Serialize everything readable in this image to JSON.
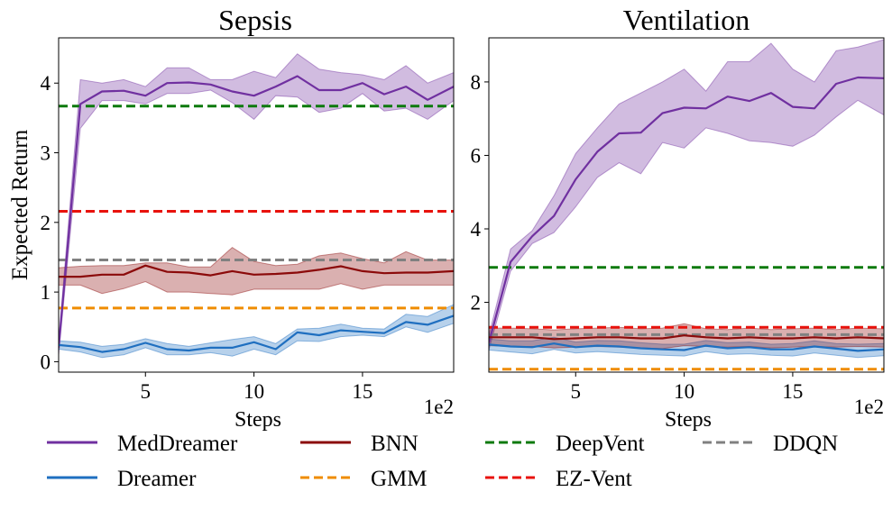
{
  "chart_data": [
    {
      "type": "line",
      "title": "Sepsis",
      "xlabel": "Steps",
      "ylabel": "Expected Return",
      "x_multiplier": "1e2",
      "xlim": [
        1,
        19.2
      ],
      "ylim": [
        -0.15,
        4.65
      ],
      "xticks": [
        5,
        10,
        15
      ],
      "yticks": [
        0,
        1,
        2,
        3,
        4
      ],
      "series": [
        {
          "name": "MedDreamer",
          "color": "#7030a0",
          "x": [
            1,
            2,
            3,
            4,
            5,
            6,
            7,
            8,
            9,
            10,
            11,
            12,
            13,
            14,
            15,
            16,
            17,
            18,
            19.2
          ],
          "y": [
            0.2,
            3.7,
            3.88,
            3.89,
            3.82,
            4.0,
            4.01,
            3.98,
            3.88,
            3.82,
            3.95,
            4.1,
            3.9,
            3.9,
            4.0,
            3.84,
            3.95,
            3.76,
            3.95
          ],
          "upper": [
            0.3,
            4.05,
            4.0,
            4.05,
            3.95,
            4.22,
            4.22,
            4.05,
            4.05,
            4.17,
            4.08,
            4.42,
            4.2,
            4.15,
            4.12,
            4.05,
            4.25,
            4.0,
            4.15
          ],
          "lower": [
            0.1,
            3.35,
            3.75,
            3.75,
            3.7,
            3.85,
            3.85,
            3.9,
            3.72,
            3.48,
            3.82,
            3.8,
            3.58,
            3.64,
            3.85,
            3.6,
            3.64,
            3.48,
            3.75
          ]
        },
        {
          "name": "Dreamer",
          "color": "#1f6fc0",
          "x": [
            1,
            2,
            3,
            4,
            5,
            6,
            7,
            8,
            9,
            10,
            11,
            12,
            13,
            14,
            15,
            16,
            17,
            18,
            19.2
          ],
          "y": [
            0.24,
            0.21,
            0.14,
            0.18,
            0.27,
            0.18,
            0.16,
            0.2,
            0.2,
            0.28,
            0.18,
            0.42,
            0.38,
            0.45,
            0.43,
            0.41,
            0.57,
            0.53,
            0.66
          ],
          "upper": [
            0.3,
            0.28,
            0.22,
            0.25,
            0.33,
            0.26,
            0.22,
            0.27,
            0.32,
            0.36,
            0.26,
            0.47,
            0.48,
            0.54,
            0.48,
            0.47,
            0.68,
            0.65,
            0.82
          ],
          "lower": [
            0.18,
            0.14,
            0.06,
            0.1,
            0.2,
            0.1,
            0.1,
            0.13,
            0.08,
            0.18,
            0.1,
            0.3,
            0.29,
            0.36,
            0.38,
            0.36,
            0.5,
            0.42,
            0.55
          ]
        },
        {
          "name": "BNN",
          "color": "#8b0a0a",
          "x": [
            1,
            2,
            3,
            4,
            5,
            6,
            7,
            8,
            9,
            10,
            11,
            12,
            13,
            14,
            15,
            16,
            17,
            18,
            19.2
          ],
          "y": [
            1.22,
            1.22,
            1.25,
            1.25,
            1.38,
            1.29,
            1.28,
            1.24,
            1.3,
            1.25,
            1.26,
            1.28,
            1.32,
            1.37,
            1.3,
            1.27,
            1.28,
            1.28,
            1.3
          ],
          "upper": [
            1.35,
            1.37,
            1.38,
            1.38,
            1.42,
            1.42,
            1.36,
            1.36,
            1.64,
            1.44,
            1.38,
            1.4,
            1.52,
            1.56,
            1.48,
            1.42,
            1.58,
            1.46,
            1.46
          ],
          "lower": [
            1.1,
            1.1,
            0.98,
            1.05,
            1.15,
            1.0,
            1.0,
            0.98,
            0.96,
            1.04,
            1.04,
            1.04,
            1.04,
            1.12,
            1.04,
            1.1,
            1.1,
            1.1,
            1.1
          ]
        },
        {
          "name": "GMM",
          "color": "#ef8c00",
          "constant": 0.77
        },
        {
          "name": "DeepVent",
          "color": "#0d7a0d",
          "constant": 3.67
        },
        {
          "name": "EZ-Vent",
          "color": "#e8120c",
          "constant": 2.16
        },
        {
          "name": "DDQN",
          "color": "#808080",
          "constant": 1.46
        }
      ]
    },
    {
      "type": "line",
      "title": "Ventilation",
      "xlabel": "Steps",
      "ylabel": "",
      "x_multiplier": "1e2",
      "xlim": [
        1,
        19.2
      ],
      "ylim": [
        0.1,
        9.2
      ],
      "xticks": [
        5,
        10,
        15
      ],
      "yticks": [
        2,
        4,
        6,
        8
      ],
      "series": [
        {
          "name": "MedDreamer",
          "color": "#7030a0",
          "x": [
            1,
            2,
            3,
            4,
            5,
            6,
            7,
            8,
            9,
            10,
            11,
            12,
            13,
            14,
            15,
            16,
            17,
            18,
            19.2
          ],
          "y": [
            0.9,
            3.1,
            3.8,
            4.35,
            5.35,
            6.1,
            6.6,
            6.62,
            7.15,
            7.3,
            7.28,
            7.6,
            7.48,
            7.7,
            7.32,
            7.28,
            7.95,
            8.12,
            8.1
          ],
          "upper": [
            1.1,
            3.45,
            3.95,
            4.9,
            6.05,
            6.75,
            7.4,
            7.7,
            8.0,
            8.35,
            7.75,
            8.55,
            8.55,
            9.05,
            8.35,
            8.0,
            8.85,
            8.95,
            9.15
          ],
          "lower": [
            0.7,
            2.85,
            3.6,
            3.9,
            4.6,
            5.4,
            5.8,
            5.5,
            6.35,
            6.2,
            6.75,
            6.6,
            6.4,
            6.35,
            6.25,
            6.55,
            7.05,
            7.5,
            7.1
          ]
        },
        {
          "name": "Dreamer",
          "color": "#1f6fc0",
          "x": [
            1,
            2,
            3,
            4,
            5,
            6,
            7,
            8,
            9,
            10,
            11,
            12,
            13,
            14,
            15,
            16,
            17,
            18,
            19.2
          ],
          "y": [
            0.85,
            0.8,
            0.78,
            0.88,
            0.78,
            0.82,
            0.8,
            0.75,
            0.72,
            0.7,
            0.82,
            0.75,
            0.78,
            0.72,
            0.72,
            0.8,
            0.74,
            0.68,
            0.72
          ],
          "upper": [
            1.0,
            0.95,
            0.95,
            1.05,
            0.92,
            0.96,
            0.95,
            0.9,
            0.86,
            0.86,
            0.96,
            0.9,
            0.92,
            0.86,
            0.88,
            0.95,
            0.88,
            0.86,
            0.88
          ],
          "lower": [
            0.7,
            0.65,
            0.6,
            0.72,
            0.62,
            0.66,
            0.62,
            0.58,
            0.56,
            0.54,
            0.66,
            0.58,
            0.6,
            0.56,
            0.54,
            0.62,
            0.56,
            0.5,
            0.55
          ]
        },
        {
          "name": "BNN",
          "color": "#8b0a0a",
          "x": [
            1,
            2,
            3,
            4,
            5,
            6,
            7,
            8,
            9,
            10,
            11,
            12,
            13,
            14,
            15,
            16,
            17,
            18,
            19.2
          ],
          "y": [
            1.05,
            1.05,
            1.05,
            1.0,
            1.02,
            1.05,
            1.05,
            1.02,
            1.02,
            1.1,
            1.05,
            1.02,
            1.05,
            1.02,
            1.02,
            1.05,
            1.02,
            1.05,
            1.02
          ],
          "upper": [
            1.3,
            1.3,
            1.28,
            1.25,
            1.28,
            1.3,
            1.32,
            1.28,
            1.3,
            1.42,
            1.28,
            1.26,
            1.3,
            1.26,
            1.28,
            1.3,
            1.26,
            1.3,
            1.28
          ],
          "lower": [
            0.82,
            0.8,
            0.8,
            0.76,
            0.78,
            0.8,
            0.78,
            0.76,
            0.74,
            0.82,
            0.8,
            0.78,
            0.8,
            0.76,
            0.78,
            0.8,
            0.78,
            0.8,
            0.78
          ]
        },
        {
          "name": "GMM",
          "color": "#ef8c00",
          "constant": 0.18
        },
        {
          "name": "DeepVent",
          "color": "#0d7a0d",
          "constant": 2.95
        },
        {
          "name": "EZ-Vent",
          "color": "#e8120c",
          "constant": 1.32
        },
        {
          "name": "DDQN",
          "color": "#808080",
          "constant": 1.12
        }
      ]
    }
  ],
  "legend": [
    {
      "label": "MedDreamer",
      "color": "#7030a0",
      "style": "solid"
    },
    {
      "label": "BNN",
      "color": "#8b0a0a",
      "style": "solid"
    },
    {
      "label": "DeepVent",
      "color": "#0d7a0d",
      "style": "dashed"
    },
    {
      "label": "DDQN",
      "color": "#808080",
      "style": "dashed"
    },
    {
      "label": "Dreamer",
      "color": "#1f6fc0",
      "style": "solid"
    },
    {
      "label": "GMM",
      "color": "#ef8c00",
      "style": "dashed"
    },
    {
      "label": "EZ-Vent",
      "color": "#e8120c",
      "style": "dashed"
    }
  ]
}
